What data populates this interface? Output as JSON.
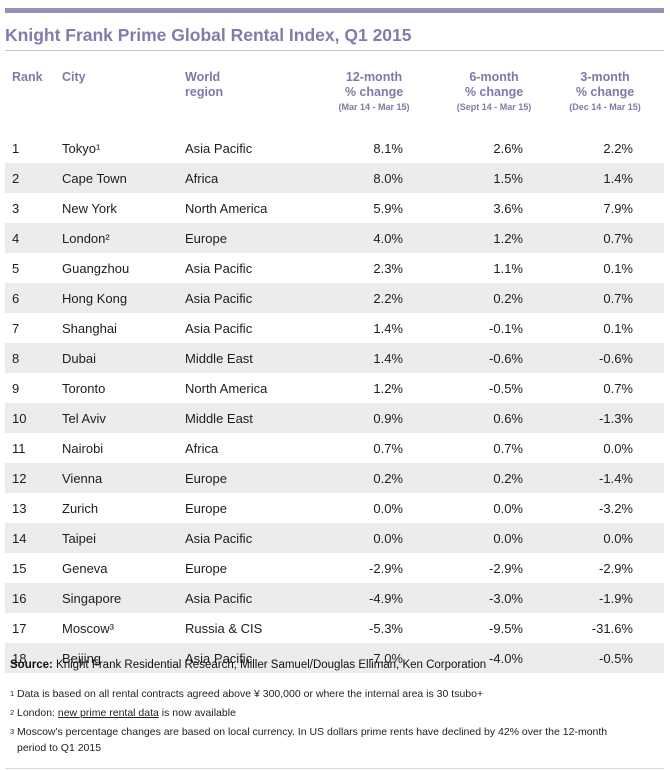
{
  "title": "Knight Frank Prime Global Rental Index, Q1 2015",
  "colors": {
    "accent_bar": "#9b91b6",
    "title_text": "#857bab",
    "header_text": "#8278a7",
    "row_stripe": "#ececef",
    "body_text": "#1d1d1d"
  },
  "table": {
    "headers": {
      "rank": "Rank",
      "city": "City",
      "region": "World\nregion",
      "m12": "12-month\n% change",
      "m12_period": "(Mar 14 - Mar 15)",
      "m6": "6-month\n% change",
      "m6_period": "(Sept 14 - Mar 15)",
      "m3": "3-month\n% change",
      "m3_period": "(Dec 14 - Mar 15)"
    },
    "rows": [
      {
        "rank": "1",
        "city": "Tokyo¹",
        "region": "Asia Pacific",
        "m12": "8.1%",
        "m6": "2.6%",
        "m3": "2.2%"
      },
      {
        "rank": "2",
        "city": "Cape Town",
        "region": "Africa",
        "m12": "8.0%",
        "m6": "1.5%",
        "m3": "1.4%"
      },
      {
        "rank": "3",
        "city": "New York",
        "region": "North America",
        "m12": "5.9%",
        "m6": "3.6%",
        "m3": "7.9%"
      },
      {
        "rank": "4",
        "city": "London²",
        "region": "Europe",
        "m12": "4.0%",
        "m6": "1.2%",
        "m3": "0.7%"
      },
      {
        "rank": "5",
        "city": "Guangzhou",
        "region": "Asia Pacific",
        "m12": "2.3%",
        "m6": "1.1%",
        "m3": "0.1%"
      },
      {
        "rank": "6",
        "city": "Hong Kong",
        "region": "Asia Pacific",
        "m12": "2.2%",
        "m6": "0.2%",
        "m3": "0.7%"
      },
      {
        "rank": "7",
        "city": "Shanghai",
        "region": "Asia Pacific",
        "m12": "1.4%",
        "m6": "-0.1%",
        "m3": "0.1%"
      },
      {
        "rank": "8",
        "city": "Dubai",
        "region": "Middle East",
        "m12": "1.4%",
        "m6": "-0.6%",
        "m3": "-0.6%"
      },
      {
        "rank": "9",
        "city": "Toronto",
        "region": "North America",
        "m12": "1.2%",
        "m6": "-0.5%",
        "m3": "0.7%"
      },
      {
        "rank": "10",
        "city": "Tel Aviv",
        "region": "Middle East",
        "m12": "0.9%",
        "m6": "0.6%",
        "m3": "-1.3%"
      },
      {
        "rank": "11",
        "city": "Nairobi",
        "region": "Africa",
        "m12": "0.7%",
        "m6": "0.7%",
        "m3": "0.0%"
      },
      {
        "rank": "12",
        "city": "Vienna",
        "region": "Europe",
        "m12": "0.2%",
        "m6": "0.2%",
        "m3": "-1.4%"
      },
      {
        "rank": "13",
        "city": "Zurich",
        "region": "Europe",
        "m12": "0.0%",
        "m6": "0.0%",
        "m3": "-3.2%"
      },
      {
        "rank": "14",
        "city": "Taipei",
        "region": "Asia Pacific",
        "m12": "0.0%",
        "m6": "0.0%",
        "m3": "0.0%"
      },
      {
        "rank": "15",
        "city": "Geneva",
        "region": "Europe",
        "m12": "-2.9%",
        "m6": "-2.9%",
        "m3": "-2.9%"
      },
      {
        "rank": "16",
        "city": "Singapore",
        "region": "Asia Pacific",
        "m12": "-4.9%",
        "m6": "-3.0%",
        "m3": "-1.9%"
      },
      {
        "rank": "17",
        "city": "Moscow³",
        "region": "Russia & CIS",
        "m12": "-5.3%",
        "m6": "-9.5%",
        "m3": "-31.6%"
      },
      {
        "rank": "18",
        "city": "Beijing",
        "region": "Asia Pacific",
        "m12": "-7.0%",
        "m6": "-4.0%",
        "m3": "-0.5%"
      }
    ]
  },
  "source": {
    "label": "Source:",
    "text": " Knight Frank Residential Research, Miller Samuel/Douglas Elliman, Ken Corporation"
  },
  "footnotes": {
    "fn1": {
      "sup": "1",
      "text": "Data is based on all rental contracts agreed above ¥ 300,000 or where the internal area is 30 tsubo+"
    },
    "fn2": {
      "sup": "2",
      "prefix": "London: ",
      "link": "new prime rental data",
      "suffix": " is now available"
    },
    "fn3": {
      "sup": "3",
      "line1": "Moscow's percentage changes are based on local currency. In US dollars prime rents have declined by 42% over the 12-month",
      "line2": "period to Q1 2015"
    }
  }
}
